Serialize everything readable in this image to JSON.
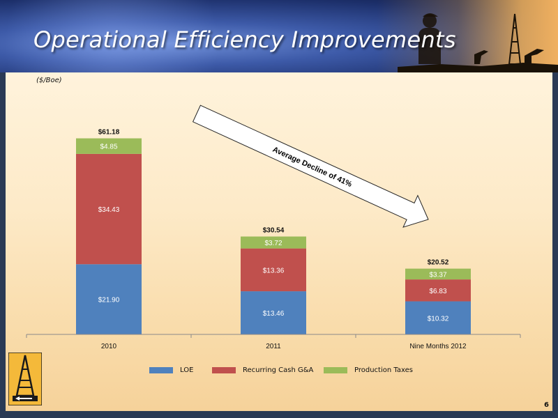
{
  "slide": {
    "title": "Operational Efficiency Improvements",
    "page_number": "6"
  },
  "chart_data": {
    "type": "bar",
    "stacked": true,
    "unit_label": "($/Boe)",
    "categories": [
      "2010",
      "2011",
      "Nine Months 2012"
    ],
    "series": [
      {
        "name": "LOE",
        "color": "#4f81bd",
        "values": [
          21.9,
          13.46,
          10.32
        ],
        "labels": [
          "$21.90",
          "$13.46",
          "$10.32"
        ]
      },
      {
        "name": "Recurring Cash G&A",
        "color": "#c0504d",
        "values": [
          34.43,
          13.36,
          6.83
        ],
        "labels": [
          "$34.43",
          "$13.36",
          "$6.83"
        ]
      },
      {
        "name": "Production Taxes",
        "color": "#9bbb59",
        "values": [
          4.85,
          3.72,
          3.37
        ],
        "labels": [
          "$4.85",
          "$3.72",
          "$3.37"
        ]
      }
    ],
    "totals": [
      61.18,
      30.54,
      20.52
    ],
    "total_labels": [
      "$61.18",
      "$30.54",
      "$20.52"
    ],
    "annotation": "Average Decline of 41%",
    "legend_position": "bottom",
    "grid": false
  }
}
